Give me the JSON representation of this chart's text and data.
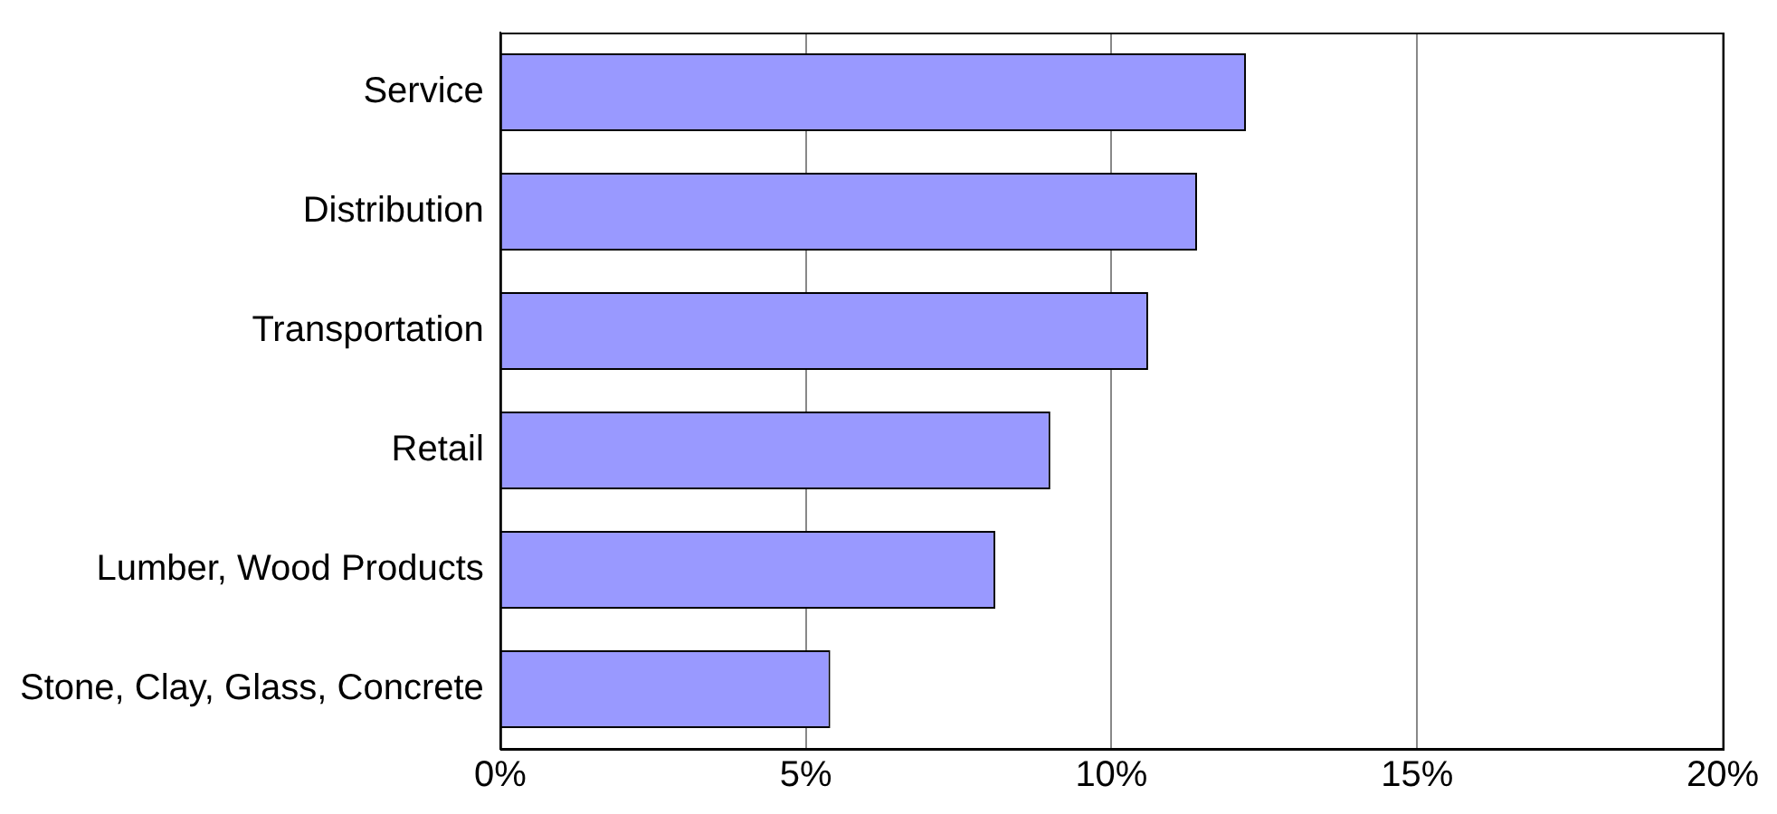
{
  "chart_data": {
    "type": "bar",
    "orientation": "horizontal",
    "categories": [
      "Service",
      "Distribution",
      "Transportation",
      "Retail",
      "Lumber, Wood Products",
      "Stone, Clay, Glass, Concrete"
    ],
    "values": [
      12.2,
      11.4,
      10.6,
      9.0,
      8.1,
      5.4
    ],
    "color": "#9999ff",
    "xlim": [
      0,
      20
    ],
    "xticks": [
      {
        "value": 0,
        "label": "0%"
      },
      {
        "value": 5,
        "label": "5%"
      },
      {
        "value": 10,
        "label": "10%"
      },
      {
        "value": 15,
        "label": "15%"
      },
      {
        "value": 20,
        "label": "20%"
      }
    ],
    "grid": "x",
    "legend": false
  }
}
